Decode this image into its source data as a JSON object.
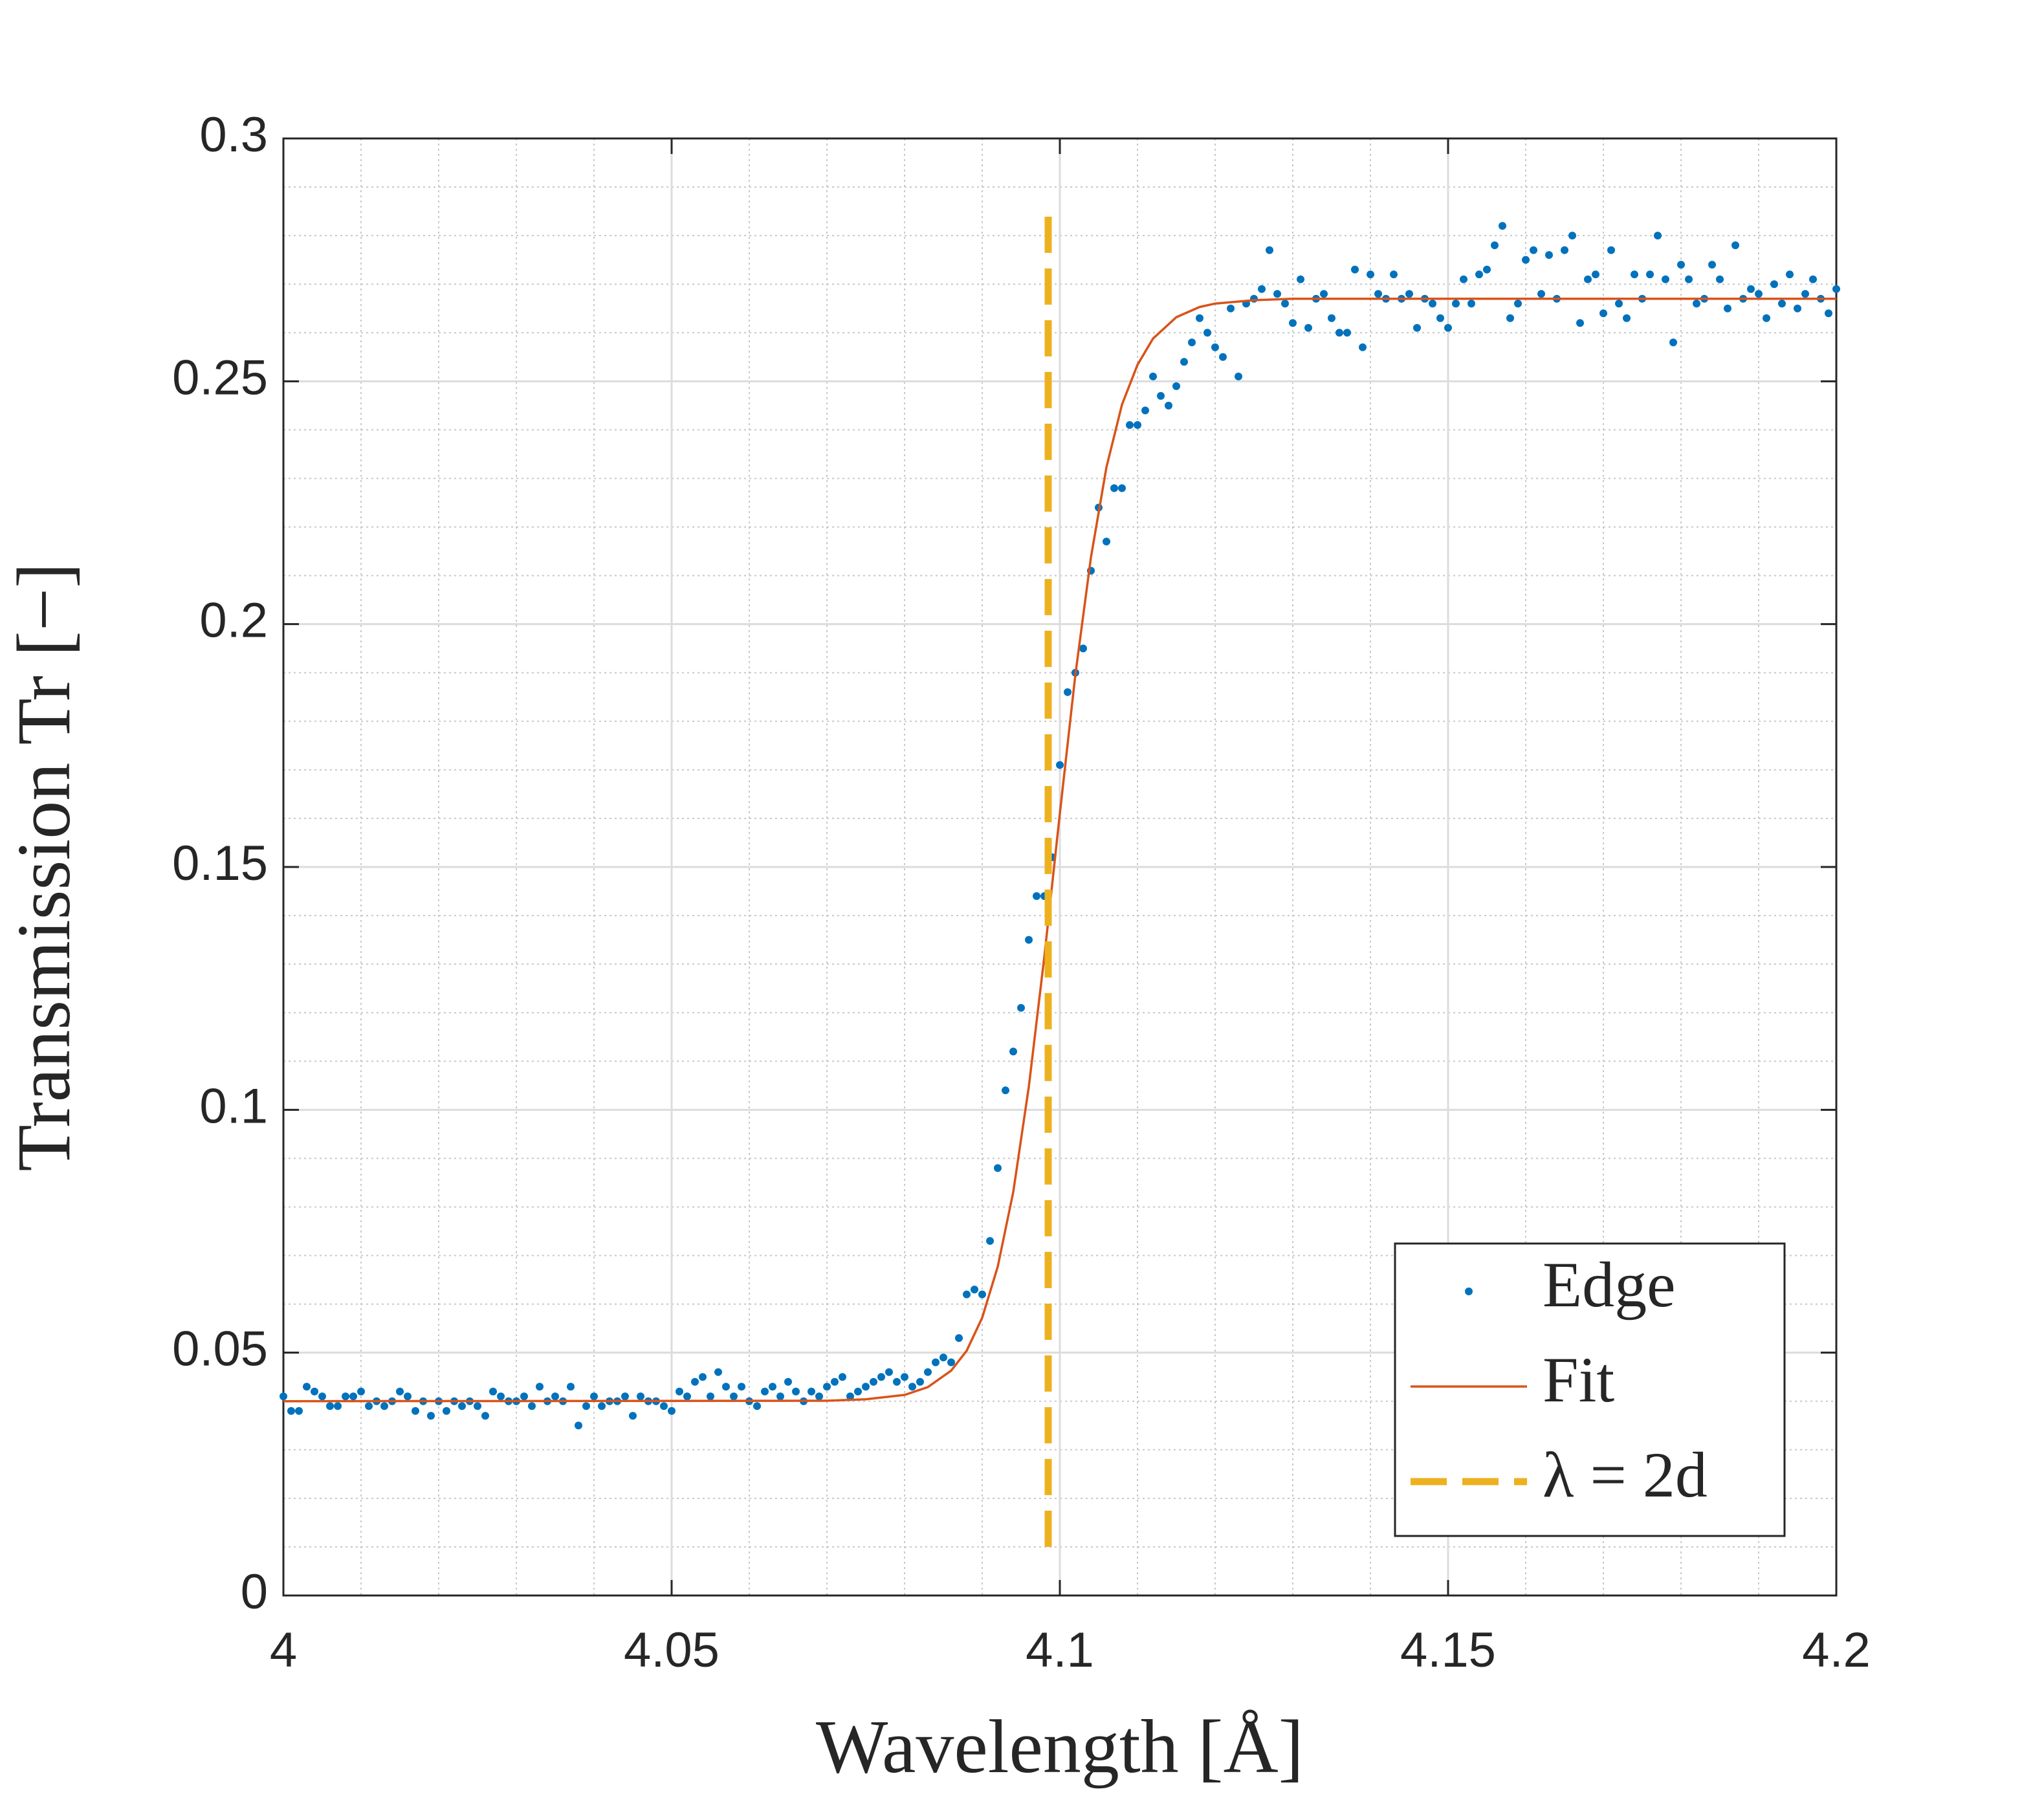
{
  "chart_data": {
    "type": "scatter",
    "xlabel": "Wavelength [Å]",
    "ylabel": "Transmission Tr [−]",
    "xlim": [
      4,
      4.2
    ],
    "ylim": [
      0,
      0.3
    ],
    "xticks": [
      4,
      4.05,
      4.1,
      4.15,
      4.2
    ],
    "yticks": [
      0,
      0.05,
      0.1,
      0.15,
      0.2,
      0.25,
      0.3
    ],
    "xminorticks": [
      4.01,
      4.02,
      4.03,
      4.04,
      4.06,
      4.07,
      4.08,
      4.09,
      4.11,
      4.12,
      4.13,
      4.14,
      4.16,
      4.17,
      4.18,
      4.19
    ],
    "yminorticks": [
      0.01,
      0.02,
      0.03,
      0.04,
      0.06,
      0.07,
      0.08,
      0.09,
      0.11,
      0.12,
      0.13,
      0.14,
      0.16,
      0.17,
      0.18,
      0.19,
      0.21,
      0.22,
      0.23,
      0.24,
      0.26,
      0.27,
      0.28,
      0.29
    ],
    "grid": true,
    "legend": "lower right",
    "series": [
      {
        "name": "Edge",
        "color": "#0072bd",
        "style": "points",
        "x": [
          4.0,
          4.001,
          4.002,
          4.003,
          4.004,
          4.005,
          4.006,
          4.007,
          4.008,
          4.009,
          4.01,
          4.011,
          4.012,
          4.013,
          4.014,
          4.015,
          4.016,
          4.017,
          4.018,
          4.019,
          4.02,
          4.021,
          4.022,
          4.023,
          4.024,
          4.025,
          4.026,
          4.027,
          4.028,
          4.029,
          4.03,
          4.031,
          4.032,
          4.033,
          4.034,
          4.035,
          4.036,
          4.037,
          4.038,
          4.039,
          4.04,
          4.041,
          4.042,
          4.043,
          4.044,
          4.045,
          4.046,
          4.047,
          4.048,
          4.049,
          4.05,
          4.051,
          4.052,
          4.053,
          4.054,
          4.055,
          4.056,
          4.057,
          4.058,
          4.059,
          4.06,
          4.061,
          4.062,
          4.063,
          4.064,
          4.065,
          4.066,
          4.067,
          4.068,
          4.069,
          4.07,
          4.071,
          4.072,
          4.073,
          4.074,
          4.075,
          4.076,
          4.077,
          4.078,
          4.079,
          4.08,
          4.081,
          4.082,
          4.083,
          4.084,
          4.085,
          4.086,
          4.087,
          4.088,
          4.089,
          4.09,
          4.091,
          4.092,
          4.093,
          4.094,
          4.095,
          4.096,
          4.097,
          4.098,
          4.099,
          4.1,
          4.101,
          4.102,
          4.103,
          4.104,
          4.105,
          4.106,
          4.107,
          4.108,
          4.109,
          4.11,
          4.111,
          4.112,
          4.113,
          4.114,
          4.115,
          4.116,
          4.117,
          4.118,
          4.119,
          4.12,
          4.121,
          4.122,
          4.123,
          4.124,
          4.125,
          4.126,
          4.127,
          4.128,
          4.129,
          4.13,
          4.131,
          4.132,
          4.133,
          4.134,
          4.135,
          4.136,
          4.137,
          4.138,
          4.139,
          4.14,
          4.141,
          4.142,
          4.143,
          4.144,
          4.145,
          4.146,
          4.147,
          4.148,
          4.149,
          4.15,
          4.151,
          4.152,
          4.153,
          4.154,
          4.155,
          4.156,
          4.157,
          4.158,
          4.159,
          4.16,
          4.161,
          4.162,
          4.163,
          4.164,
          4.165,
          4.166,
          4.167,
          4.168,
          4.169,
          4.17,
          4.171,
          4.172,
          4.173,
          4.174,
          4.175,
          4.176,
          4.177,
          4.178,
          4.179,
          4.18,
          4.181,
          4.182,
          4.183,
          4.184,
          4.185,
          4.186,
          4.187,
          4.188,
          4.189,
          4.19,
          4.191,
          4.192,
          4.193,
          4.194,
          4.195,
          4.196,
          4.197,
          4.198,
          4.199,
          4.2
        ],
        "values": [
          0.041,
          0.038,
          0.038,
          0.043,
          0.042,
          0.041,
          0.039,
          0.039,
          0.041,
          0.041,
          0.042,
          0.039,
          0.04,
          0.039,
          0.04,
          0.042,
          0.041,
          0.038,
          0.04,
          0.037,
          0.04,
          0.038,
          0.04,
          0.039,
          0.04,
          0.039,
          0.037,
          0.042,
          0.041,
          0.04,
          0.04,
          0.041,
          0.039,
          0.043,
          0.04,
          0.041,
          0.04,
          0.043,
          0.035,
          0.039,
          0.041,
          0.039,
          0.04,
          0.04,
          0.041,
          0.037,
          0.041,
          0.04,
          0.04,
          0.039,
          0.038,
          0.042,
          0.041,
          0.044,
          0.045,
          0.041,
          0.046,
          0.043,
          0.041,
          0.043,
          0.04,
          0.039,
          0.042,
          0.043,
          0.041,
          0.044,
          0.042,
          0.04,
          0.042,
          0.041,
          0.043,
          0.044,
          0.045,
          0.041,
          0.042,
          0.043,
          0.044,
          0.045,
          0.046,
          0.044,
          0.045,
          0.043,
          0.044,
          0.046,
          0.048,
          0.049,
          0.048,
          0.053,
          0.062,
          0.063,
          0.062,
          0.073,
          0.088,
          0.104,
          0.112,
          0.121,
          0.135,
          0.144,
          0.144,
          0.152,
          0.171,
          0.186,
          0.19,
          0.195,
          0.211,
          0.224,
          0.217,
          0.228,
          0.228,
          0.241,
          0.241,
          0.244,
          0.251,
          0.247,
          0.245,
          0.249,
          0.254,
          0.258,
          0.263,
          0.26,
          0.257,
          0.255,
          0.265,
          0.251,
          0.266,
          0.267,
          0.269,
          0.277,
          0.268,
          0.266,
          0.262,
          0.271,
          0.261,
          0.267,
          0.268,
          0.263,
          0.26,
          0.26,
          0.273,
          0.257,
          0.272,
          0.268,
          0.267,
          0.272,
          0.267,
          0.268,
          0.261,
          0.267,
          0.266,
          0.263,
          0.261,
          0.266,
          0.271,
          0.266,
          0.272,
          0.273,
          0.278,
          0.282,
          0.263,
          0.266,
          0.275,
          0.277,
          0.268,
          0.276,
          0.267,
          0.277,
          0.28,
          0.262,
          0.271,
          0.272,
          0.264,
          0.277,
          0.266,
          0.263,
          0.272,
          0.267,
          0.272,
          0.28,
          0.271,
          0.258,
          0.274,
          0.271,
          0.266,
          0.267,
          0.274,
          0.271,
          0.265,
          0.278,
          0.267,
          0.269,
          0.268,
          0.263,
          0.27,
          0.266,
          0.272,
          0.265,
          0.268,
          0.271,
          0.267,
          0.264,
          0.269
        ]
      },
      {
        "name": "Fit",
        "color": "#d95319",
        "style": "line",
        "x": [
          4,
          4.07,
          4.075,
          4.08,
          4.083,
          4.086,
          4.088,
          4.09,
          4.092,
          4.094,
          4.096,
          4.098,
          4.1,
          4.102,
          4.104,
          4.106,
          4.108,
          4.11,
          4.112,
          4.115,
          4.118,
          4.12,
          4.125,
          4.13,
          4.2
        ],
        "values": [
          0.04,
          0.0401,
          0.0404,
          0.0413,
          0.0429,
          0.0463,
          0.0504,
          0.0572,
          0.0677,
          0.0831,
          0.1047,
          0.1315,
          0.161,
          0.1896,
          0.2137,
          0.2323,
          0.2452,
          0.2534,
          0.2588,
          0.2632,
          0.2653,
          0.266,
          0.2667,
          0.267,
          0.267
        ]
      },
      {
        "name": "λ = 2d",
        "color": "#edb120",
        "style": "dashed",
        "x": [
          4.0985,
          4.0985
        ],
        "values": [
          0.01,
          0.286
        ]
      }
    ]
  }
}
